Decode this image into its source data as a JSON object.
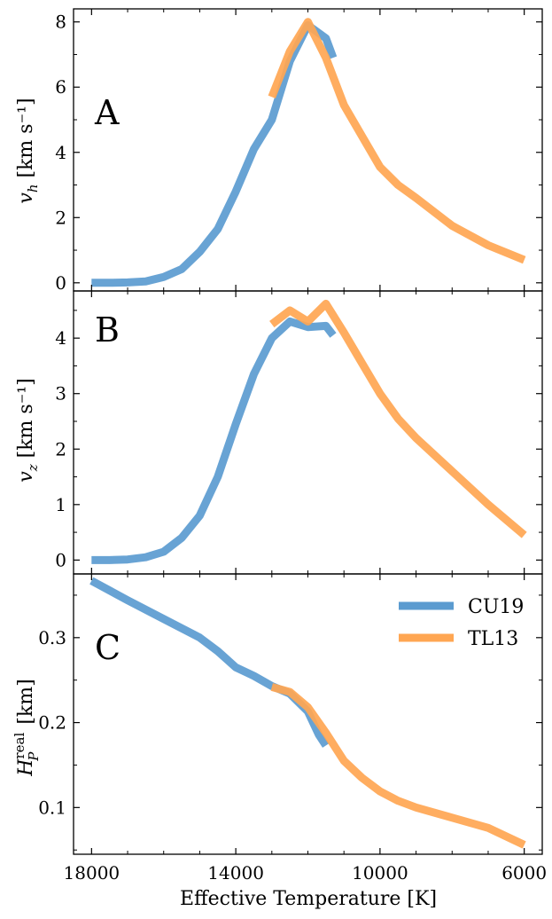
{
  "chart_data": [
    {
      "type": "line",
      "panel_label": "A",
      "ylabel": "v_h [km s⁻¹]",
      "ylim": [
        -0.25,
        8.4
      ],
      "yticks": [
        0,
        2,
        4,
        6,
        8
      ],
      "ytick_labels": [
        "0",
        "2",
        "4",
        "6",
        "8"
      ],
      "xlim": [
        18500,
        5500
      ],
      "xticks": [
        18000,
        14000,
        10000,
        6000
      ],
      "series": [
        {
          "name": "CU19",
          "color": "#5b9bd0",
          "x": [
            18000,
            17500,
            17000,
            16500,
            16000,
            15500,
            15000,
            14500,
            14000,
            13500,
            13000,
            12500,
            12000,
            11500,
            11300
          ],
          "y": [
            0.0,
            0.0,
            0.01,
            0.04,
            0.18,
            0.42,
            0.95,
            1.65,
            2.8,
            4.1,
            5.0,
            6.8,
            7.9,
            7.5,
            6.9
          ]
        },
        {
          "name": "TL13",
          "color": "#ffa652",
          "x": [
            13000,
            12500,
            12000,
            11500,
            11000,
            10500,
            10000,
            9500,
            9000,
            8000,
            7000,
            6000
          ],
          "y": [
            5.7,
            7.1,
            8.0,
            6.9,
            5.45,
            4.5,
            3.55,
            3.0,
            2.6,
            1.75,
            1.15,
            0.7
          ]
        }
      ]
    },
    {
      "type": "line",
      "panel_label": "B",
      "ylabel": "v_z [km s⁻¹]",
      "ylim": [
        -0.25,
        4.85
      ],
      "yticks": [
        0,
        1,
        2,
        3,
        4
      ],
      "ytick_labels": [
        "0",
        "1",
        "2",
        "3",
        "4"
      ],
      "xlim": [
        18500,
        5500
      ],
      "xticks": [
        18000,
        14000,
        10000,
        6000
      ],
      "series": [
        {
          "name": "CU19",
          "color": "#5b9bd0",
          "x": [
            18000,
            17500,
            17000,
            16500,
            16000,
            15500,
            15000,
            14500,
            14000,
            13500,
            13000,
            12500,
            12000,
            11500,
            11300
          ],
          "y": [
            0.0,
            0.0,
            0.01,
            0.05,
            0.15,
            0.4,
            0.8,
            1.5,
            2.45,
            3.35,
            4.0,
            4.3,
            4.2,
            4.22,
            4.05
          ]
        },
        {
          "name": "TL13",
          "color": "#ffa652",
          "x": [
            13000,
            12500,
            12000,
            11500,
            11000,
            10500,
            10000,
            9500,
            9000,
            8000,
            7000,
            6000
          ],
          "y": [
            4.25,
            4.5,
            4.3,
            4.62,
            4.1,
            3.55,
            3.0,
            2.55,
            2.2,
            1.6,
            1.0,
            0.45
          ]
        }
      ]
    },
    {
      "type": "line",
      "panel_label": "C",
      "ylabel": "H_P^real [km]",
      "ylim": [
        0.045,
        0.375
      ],
      "yticks": [
        0.1,
        0.2,
        0.3
      ],
      "ytick_labels": [
        "0.1",
        "0.2",
        "0.3"
      ],
      "xlim": [
        18500,
        5500
      ],
      "xticks": [
        18000,
        14000,
        10000,
        6000
      ],
      "xtick_labels": [
        "18000",
        "14000",
        "10000",
        "6000"
      ],
      "xlabel": "Effective Temperature [K]",
      "legend": "top-right",
      "series": [
        {
          "name": "CU19",
          "color": "#5b9bd0",
          "x": [
            18000,
            17000,
            16000,
            15000,
            14500,
            14000,
            13500,
            13000,
            12500,
            12000,
            11700,
            11500
          ],
          "y": [
            0.367,
            0.344,
            0.322,
            0.3,
            0.284,
            0.265,
            0.255,
            0.243,
            0.234,
            0.213,
            0.186,
            0.173
          ]
        },
        {
          "name": "TL13",
          "color": "#ffa652",
          "x": [
            13000,
            12500,
            12000,
            11500,
            11000,
            10500,
            10000,
            9500,
            9000,
            8000,
            7000,
            6000
          ],
          "y": [
            0.242,
            0.236,
            0.218,
            0.188,
            0.155,
            0.135,
            0.119,
            0.108,
            0.1,
            0.088,
            0.076,
            0.056
          ]
        }
      ]
    }
  ]
}
